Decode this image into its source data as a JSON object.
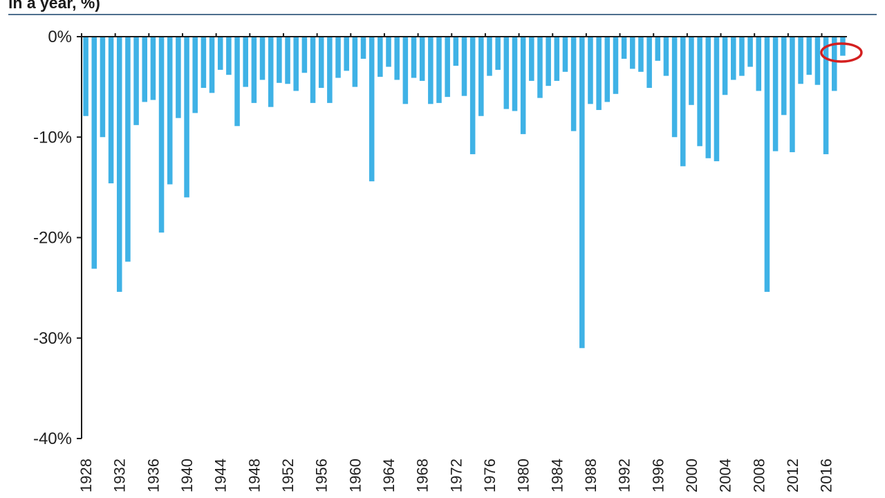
{
  "header": {
    "title": "in a year, %)"
  },
  "colors": {
    "bar": "#3fb2e6",
    "axis": "#1a1a1a",
    "title_rule": "#4d6f8e",
    "highlight": "#d42020"
  },
  "chart_data": {
    "type": "bar",
    "title": "in a year, %)",
    "xlabel": "",
    "ylabel": "",
    "ylim": [
      -40,
      0
    ],
    "yticks": [
      0,
      -10,
      -20,
      -30,
      -40
    ],
    "ytick_labels": [
      "0%",
      "-10%",
      "-20%",
      "-30%",
      "-40%"
    ],
    "x_tick_labels": [
      "1928",
      "1932",
      "1936",
      "1940",
      "1944",
      "1948",
      "1952",
      "1956",
      "1960",
      "1964",
      "1968",
      "1972",
      "1976",
      "1980",
      "1984",
      "1988",
      "1992",
      "1996",
      "2000",
      "2004",
      "2008",
      "2012",
      "2016"
    ],
    "grid": false,
    "legend": "none",
    "highlight_category": "2018",
    "categories": [
      "1928",
      "1929",
      "1930",
      "1931",
      "1932",
      "1933",
      "1934",
      "1935",
      "1936",
      "1937",
      "1938",
      "1939",
      "1940",
      "1941",
      "1942",
      "1943",
      "1944",
      "1945",
      "1946",
      "1947",
      "1948",
      "1949",
      "1950",
      "1951",
      "1952",
      "1953",
      "1954",
      "1955",
      "1956",
      "1957",
      "1958",
      "1959",
      "1960",
      "1961",
      "1962",
      "1963",
      "1964",
      "1965",
      "1966",
      "1967",
      "1968",
      "1969",
      "1970",
      "1971",
      "1972",
      "1973",
      "1974",
      "1975",
      "1976",
      "1977",
      "1978",
      "1979",
      "1980",
      "1981",
      "1982",
      "1983",
      "1984",
      "1985",
      "1986",
      "1987",
      "1988",
      "1989",
      "1990",
      "1991",
      "1992",
      "1993",
      "1994",
      "1995",
      "1996",
      "1997",
      "1998",
      "1999",
      "2000",
      "2001",
      "2002",
      "2003",
      "2004",
      "2005",
      "2006",
      "2007",
      "2008",
      "2009",
      "2010",
      "2011",
      "2012",
      "2013",
      "2014",
      "2015",
      "2016",
      "2017",
      "2018"
    ],
    "values": [
      -7.9,
      -23.1,
      -10.0,
      -14.6,
      -25.4,
      -22.4,
      -8.8,
      -6.5,
      -6.3,
      -19.5,
      -14.7,
      -8.1,
      -16.0,
      -7.6,
      -5.1,
      -5.6,
      -3.3,
      -3.8,
      -8.9,
      -5.0,
      -6.6,
      -4.3,
      -7.0,
      -4.6,
      -4.7,
      -5.4,
      -3.6,
      -6.6,
      -5.1,
      -6.6,
      -4.1,
      -3.4,
      -5.0,
      -2.2,
      -14.4,
      -4.0,
      -3.0,
      -4.3,
      -6.7,
      -4.1,
      -4.4,
      -6.7,
      -6.6,
      -6.0,
      -2.9,
      -5.9,
      -11.7,
      -7.9,
      -3.9,
      -3.3,
      -7.2,
      -7.4,
      -9.7,
      -4.4,
      -6.1,
      -4.9,
      -4.4,
      -3.5,
      -9.4,
      -31.0,
      -6.7,
      -7.3,
      -6.5,
      -5.7,
      -2.2,
      -3.2,
      -3.5,
      -5.1,
      -2.4,
      -3.9,
      -10.0,
      -12.9,
      -6.8,
      -10.9,
      -12.1,
      -12.4,
      -5.8,
      -4.3,
      -3.9,
      -3.0,
      -5.4,
      -25.4,
      -11.4,
      -7.8,
      -11.5,
      -4.7,
      -3.8,
      -4.8,
      -11.7,
      -5.4,
      -1.9
    ]
  }
}
